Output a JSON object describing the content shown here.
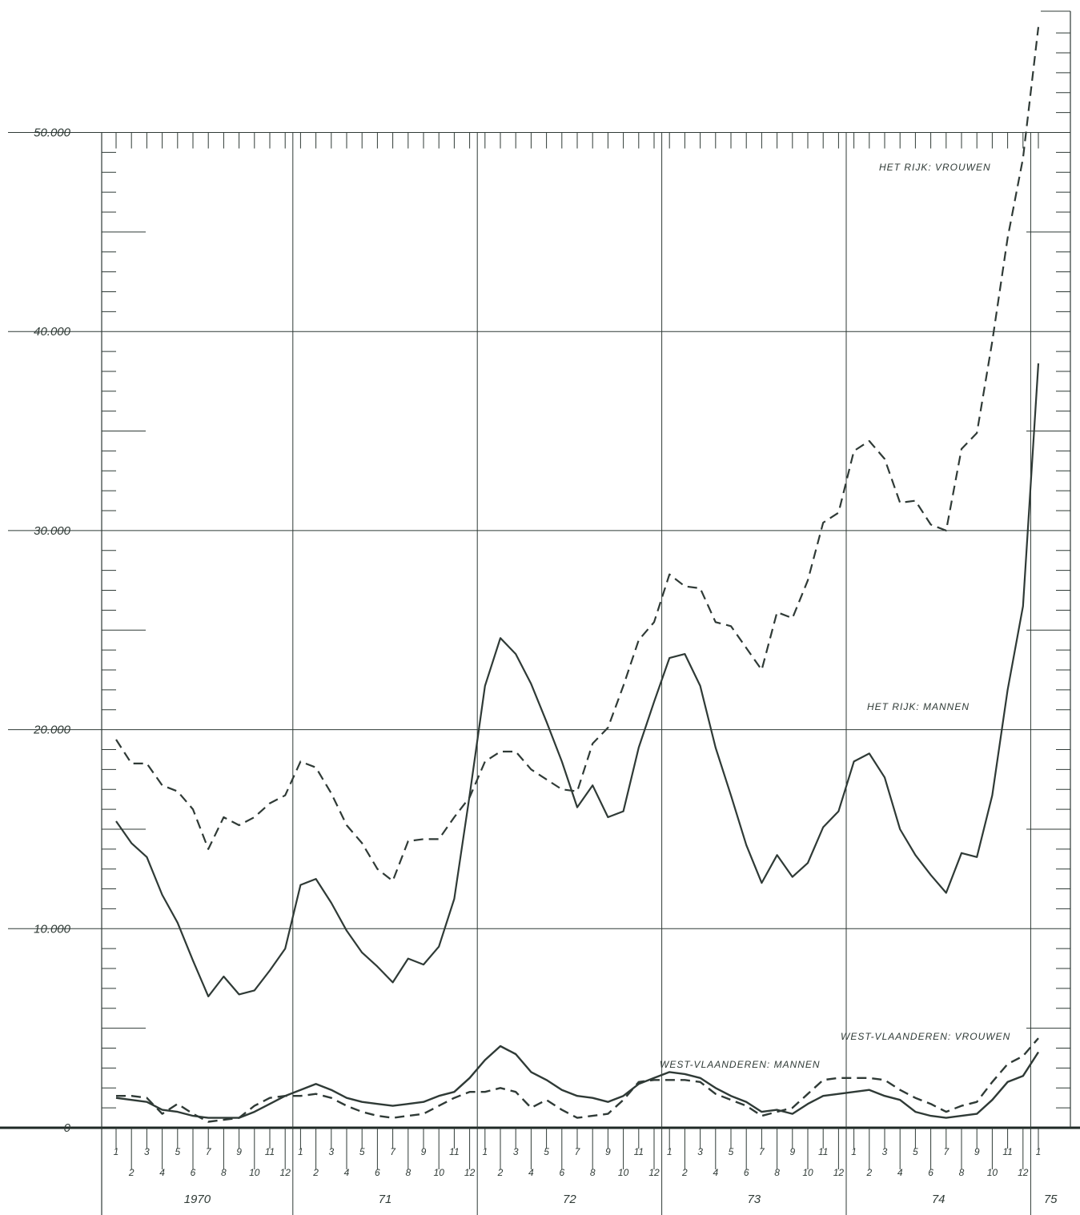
{
  "chart_data": {
    "type": "line",
    "title": "",
    "xlabel": "",
    "ylabel": "",
    "ylim": [
      0,
      50000
    ],
    "y_ticks": [
      "50.000",
      "40.000",
      "30.000",
      "20.000",
      "10.000",
      "0"
    ],
    "y_tick_values": [
      50000,
      40000,
      30000,
      20000,
      10000,
      0
    ],
    "grid": true,
    "years": [
      "1970",
      "71",
      "72",
      "73",
      "74",
      "75"
    ],
    "months": [
      "1",
      "2",
      "3",
      "4",
      "5",
      "6",
      "7",
      "8",
      "9",
      "10",
      "11",
      "12"
    ],
    "x": [
      "1970-01",
      "1970-02",
      "1970-03",
      "1970-04",
      "1970-05",
      "1970-06",
      "1970-07",
      "1970-08",
      "1970-09",
      "1970-10",
      "1970-11",
      "1970-12",
      "1971-01",
      "1971-02",
      "1971-03",
      "1971-04",
      "1971-05",
      "1971-06",
      "1971-07",
      "1971-08",
      "1971-09",
      "1971-10",
      "1971-11",
      "1971-12",
      "1972-01",
      "1972-02",
      "1972-03",
      "1972-04",
      "1972-05",
      "1972-06",
      "1972-07",
      "1972-08",
      "1972-09",
      "1972-10",
      "1972-11",
      "1972-12",
      "1973-01",
      "1973-02",
      "1973-03",
      "1973-04",
      "1973-05",
      "1973-06",
      "1973-07",
      "1973-08",
      "1973-09",
      "1973-10",
      "1973-11",
      "1973-12",
      "1974-01",
      "1974-02",
      "1974-03",
      "1974-04",
      "1974-05",
      "1974-06",
      "1974-07",
      "1974-08",
      "1974-09",
      "1974-10",
      "1974-11",
      "1974-12",
      "1975-01"
    ],
    "series": [
      {
        "name": "HET RIJK: VROUWEN",
        "style": "dashed",
        "values": [
          19500,
          18300,
          18300,
          17200,
          16900,
          16000,
          14000,
          15600,
          15200,
          15600,
          16300,
          16700,
          18400,
          18100,
          16800,
          15200,
          14300,
          13000,
          12400,
          14400,
          14500,
          14500,
          15600,
          16600,
          18400,
          18900,
          18900,
          18000,
          17500,
          17000,
          16900,
          19300,
          20100,
          22200,
          24500,
          25400,
          27800,
          27200,
          27100,
          25400,
          25200,
          24100,
          23000,
          25900,
          25600,
          27500,
          30400,
          30900,
          34000,
          34500,
          33600,
          31400,
          31500,
          30300,
          30000,
          34100,
          34900,
          39500,
          44700,
          48700,
          55300
        ]
      },
      {
        "name": "HET RIJK: MANNEN",
        "style": "solid",
        "values": [
          15400,
          14300,
          13600,
          11700,
          10300,
          8400,
          6600,
          7600,
          6700,
          6900,
          7900,
          9000,
          12200,
          12500,
          11300,
          9900,
          8800,
          8100,
          7300,
          8500,
          8200,
          9100,
          11500,
          16700,
          22200,
          24600,
          23800,
          22300,
          20400,
          18400,
          16100,
          17200,
          15600,
          15900,
          19100,
          21400,
          23600,
          23800,
          22200,
          19100,
          16700,
          14200,
          12300,
          13700,
          12600,
          13300,
          15100,
          15900,
          18400,
          18800,
          17600,
          15000,
          13700,
          12700,
          11800,
          13800,
          13600,
          16700,
          22000,
          26200,
          38400
        ]
      },
      {
        "name": "WEST-VLAANDEREN: VROUWEN",
        "style": "dashed",
        "values": [
          1600,
          1600,
          1500,
          700,
          1200,
          700,
          300,
          400,
          500,
          1100,
          1500,
          1600,
          1600,
          1700,
          1500,
          1100,
          800,
          600,
          500,
          600,
          700,
          1100,
          1500,
          1800,
          1800,
          2000,
          1800,
          1000,
          1400,
          900,
          500,
          600,
          700,
          1400,
          2300,
          2400,
          2400,
          2400,
          2300,
          1700,
          1400,
          1100,
          600,
          800,
          1000,
          1700,
          2400,
          2500,
          2500,
          2500,
          2400,
          1900,
          1500,
          1200,
          800,
          1100,
          1300,
          2300,
          3200,
          3600,
          4500
        ]
      },
      {
        "name": "WEST-VLAANDEREN: MANNEN",
        "style": "solid",
        "values": [
          1500,
          1400,
          1300,
          900,
          800,
          600,
          500,
          500,
          500,
          800,
          1200,
          1600,
          1900,
          2200,
          1900,
          1500,
          1300,
          1200,
          1100,
          1200,
          1300,
          1600,
          1800,
          2500,
          3400,
          4100,
          3700,
          2800,
          2400,
          1900,
          1600,
          1500,
          1300,
          1600,
          2200,
          2500,
          2800,
          2700,
          2500,
          2000,
          1600,
          1300,
          800,
          900,
          700,
          1200,
          1600,
          1700,
          1800,
          1900,
          1600,
          1400,
          800,
          600,
          500,
          600,
          700,
          1400,
          2300,
          2600,
          3800
        ]
      }
    ],
    "annotations": [
      "HET RIJK: VROUWEN",
      "HET RIJK: MANNEN",
      "WEST-VLAANDEREN: VROUWEN",
      "WEST-VLAANDEREN: MANNEN"
    ],
    "legend": "inline labels next to lines",
    "colors": {
      "ink": "#2f3a36",
      "background": "#ffffff"
    }
  }
}
